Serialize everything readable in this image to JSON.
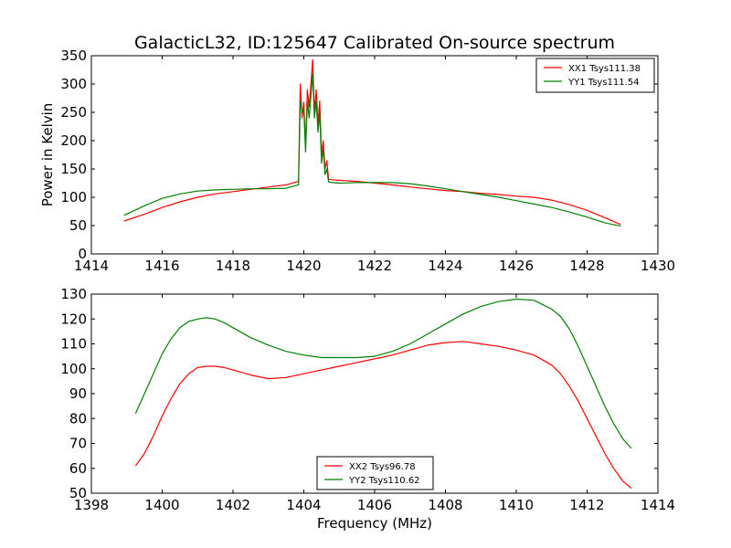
{
  "chart_data": [
    {
      "type": "line",
      "title": "GalacticL32, ID:125647 Calibrated On-source spectrum",
      "xlabel": "",
      "ylabel": "Power in Kelvin",
      "xlim": [
        1414,
        1430
      ],
      "ylim": [
        0,
        350
      ],
      "xticks": [
        1414,
        1416,
        1418,
        1420,
        1422,
        1424,
        1426,
        1428,
        1430
      ],
      "yticks": [
        0,
        50,
        100,
        150,
        200,
        250,
        300,
        350
      ],
      "legend_position": "top-right",
      "grid": false,
      "series": [
        {
          "name": "XX1 Tsys111.38",
          "color": "#ff0000",
          "x": [
            1414.92,
            1415.5,
            1416.0,
            1416.5,
            1417.0,
            1417.5,
            1418.0,
            1418.5,
            1419.0,
            1419.5,
            1419.85,
            1419.9,
            1419.95,
            1420.0,
            1420.05,
            1420.1,
            1420.15,
            1420.2,
            1420.25,
            1420.3,
            1420.35,
            1420.4,
            1420.45,
            1420.5,
            1420.55,
            1420.6,
            1420.65,
            1420.7,
            1420.8,
            1421.0,
            1421.5,
            1422.0,
            1422.5,
            1423.0,
            1423.5,
            1424.0,
            1424.5,
            1425.0,
            1425.5,
            1426.0,
            1426.5,
            1427.0,
            1427.5,
            1428.0,
            1428.5,
            1428.95
          ],
          "values": [
            58,
            70,
            82,
            92,
            100,
            106,
            110,
            114,
            118,
            122,
            128,
            300,
            240,
            268,
            190,
            290,
            260,
            300,
            343,
            250,
            290,
            230,
            270,
            175,
            200,
            150,
            165,
            132,
            131,
            130,
            128,
            125,
            122,
            118,
            115,
            112,
            110,
            107,
            105,
            102,
            100,
            95,
            87,
            77,
            64,
            52
          ]
        },
        {
          "name": "YY1 Tsys111.54",
          "color": "#008000",
          "x": [
            1414.92,
            1415.5,
            1416.0,
            1416.5,
            1417.0,
            1417.5,
            1418.0,
            1418.5,
            1419.0,
            1419.5,
            1419.85,
            1419.9,
            1419.95,
            1420.0,
            1420.05,
            1420.1,
            1420.15,
            1420.2,
            1420.25,
            1420.3,
            1420.35,
            1420.4,
            1420.45,
            1420.5,
            1420.55,
            1420.6,
            1420.65,
            1420.7,
            1420.8,
            1421.0,
            1421.5,
            1422.0,
            1422.5,
            1423.0,
            1423.5,
            1424.0,
            1424.5,
            1425.0,
            1425.5,
            1426.0,
            1426.5,
            1427.0,
            1427.5,
            1428.0,
            1428.5,
            1428.95
          ],
          "values": [
            68,
            85,
            98,
            106,
            111,
            113,
            114,
            115,
            115,
            116,
            122,
            270,
            250,
            255,
            180,
            270,
            240,
            280,
            318,
            240,
            270,
            215,
            250,
            160,
            185,
            140,
            150,
            127,
            126,
            125,
            126,
            126,
            126,
            124,
            120,
            115,
            110,
            105,
            100,
            94,
            88,
            82,
            74,
            65,
            55,
            49
          ]
        }
      ]
    },
    {
      "type": "line",
      "title": "",
      "xlabel": "Frequency (MHz)",
      "ylabel": "",
      "xlim": [
        1398,
        1414
      ],
      "ylim": [
        50,
        130
      ],
      "xticks": [
        1398,
        1400,
        1402,
        1404,
        1406,
        1408,
        1410,
        1412,
        1414
      ],
      "yticks": [
        50,
        60,
        70,
        80,
        90,
        100,
        110,
        120,
        130
      ],
      "legend_position": "bottom-center",
      "grid": false,
      "series": [
        {
          "name": "XX2 Tsys96.78",
          "color": "#ff0000",
          "x": [
            1399.25,
            1399.5,
            1399.75,
            1400.0,
            1400.25,
            1400.5,
            1400.75,
            1401.0,
            1401.25,
            1401.5,
            1401.75,
            1402.0,
            1402.5,
            1403.0,
            1403.5,
            1404.0,
            1404.5,
            1405.0,
            1405.5,
            1406.0,
            1406.5,
            1407.0,
            1407.5,
            1408.0,
            1408.5,
            1409.0,
            1409.5,
            1410.0,
            1410.5,
            1411.0,
            1411.25,
            1411.5,
            1411.75,
            1412.0,
            1412.25,
            1412.5,
            1412.75,
            1413.0,
            1413.25
          ],
          "values": [
            61,
            66,
            73,
            81,
            88,
            94,
            98,
            100.5,
            101,
            101,
            100.5,
            99.5,
            97.5,
            96,
            96.5,
            98,
            99.5,
            101,
            102.5,
            104,
            105.5,
            107.5,
            109.5,
            110.5,
            111,
            110,
            109,
            107.5,
            105.5,
            101.5,
            98,
            93,
            87,
            80,
            73,
            66,
            60,
            55,
            52
          ]
        },
        {
          "name": "YY2 Tsys110.62",
          "color": "#008000",
          "x": [
            1399.25,
            1399.5,
            1399.75,
            1400.0,
            1400.25,
            1400.5,
            1400.75,
            1401.0,
            1401.25,
            1401.5,
            1401.75,
            1402.0,
            1402.5,
            1403.0,
            1403.5,
            1404.0,
            1404.5,
            1405.0,
            1405.5,
            1406.0,
            1406.5,
            1407.0,
            1407.5,
            1408.0,
            1408.5,
            1409.0,
            1409.5,
            1410.0,
            1410.5,
            1411.0,
            1411.25,
            1411.5,
            1411.75,
            1412.0,
            1412.25,
            1412.5,
            1412.75,
            1413.0,
            1413.25
          ],
          "values": [
            82,
            90,
            98,
            106,
            112,
            116.5,
            119,
            120,
            120.5,
            120,
            118.5,
            116.5,
            112.5,
            109.5,
            107,
            105.5,
            104.5,
            104.5,
            104.5,
            105,
            107,
            110,
            114,
            118,
            122,
            125,
            127,
            128,
            127.5,
            124,
            121,
            116,
            109,
            101,
            93,
            85,
            78,
            72,
            68
          ]
        }
      ]
    }
  ]
}
